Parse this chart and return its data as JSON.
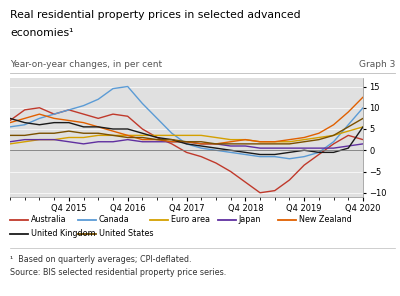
{
  "title_line1": "Real residential property prices in selected advanced",
  "title_line2": "economies¹",
  "subtitle": "Year-on-year changes, in per cent",
  "graph_label": "Graph 3",
  "footnote1": "¹  Based on quarterly averages; CPI-deflated.",
  "footnote2": "Source: BIS selected residential property price series.",
  "ylim": [
    -11,
    17
  ],
  "yticks": [
    -10,
    -5,
    0,
    5,
    10,
    15
  ],
  "background_color": "#e0e0e0",
  "x_labels": [
    "Q4 2015",
    "Q4 2016",
    "Q4 2017",
    "Q4 2018",
    "Q4 2019",
    "Q4 2020"
  ],
  "x_tick_positions": [
    4,
    8,
    12,
    16,
    20,
    24
  ],
  "n_points": 25,
  "series": {
    "Australia": {
      "color": "#c0392b",
      "data_y": [
        7.0,
        9.5,
        10.0,
        8.5,
        9.5,
        8.5,
        7.5,
        8.5,
        8.0,
        5.0,
        3.0,
        1.5,
        -0.5,
        -1.5,
        -3.0,
        -5.0,
        -7.5,
        -10.0,
        -9.5,
        -7.0,
        -3.5,
        -1.0,
        1.5,
        3.5,
        2.5
      ]
    },
    "Canada": {
      "color": "#5b9bd5",
      "data_y": [
        5.5,
        6.0,
        7.5,
        8.5,
        9.5,
        10.5,
        12.0,
        14.5,
        15.0,
        11.0,
        7.5,
        4.0,
        1.5,
        0.5,
        0.0,
        -0.5,
        -1.0,
        -1.5,
        -1.5,
        -2.0,
        -1.5,
        -0.5,
        2.0,
        6.0,
        10.0
      ]
    },
    "Euro area": {
      "color": "#d4a000",
      "data_y": [
        1.5,
        2.0,
        2.5,
        2.5,
        3.0,
        3.0,
        3.5,
        3.5,
        3.5,
        3.5,
        3.5,
        3.5,
        3.5,
        3.5,
        3.0,
        2.5,
        2.5,
        2.0,
        2.0,
        2.0,
        2.5,
        3.0,
        3.5,
        4.5,
        5.5
      ]
    },
    "Japan": {
      "color": "#6030a0",
      "data_y": [
        2.0,
        2.5,
        2.5,
        2.5,
        2.0,
        1.5,
        2.0,
        2.0,
        2.5,
        2.0,
        2.0,
        2.0,
        2.0,
        1.5,
        1.5,
        1.0,
        1.0,
        0.5,
        0.5,
        0.5,
        0.5,
        0.5,
        0.5,
        1.0,
        1.5
      ]
    },
    "New Zealand": {
      "color": "#e06000",
      "data_y": [
        6.5,
        7.5,
        8.5,
        7.5,
        7.0,
        6.5,
        5.5,
        4.5,
        3.5,
        2.5,
        2.5,
        2.0,
        2.0,
        1.5,
        1.5,
        2.0,
        2.5,
        2.0,
        2.0,
        2.5,
        3.0,
        4.0,
        6.0,
        9.0,
        12.5
      ]
    },
    "United Kingdom": {
      "color": "#1a1a1a",
      "data_y": [
        7.5,
        6.5,
        6.0,
        6.5,
        6.5,
        5.5,
        5.5,
        5.0,
        5.0,
        4.0,
        3.0,
        2.5,
        1.5,
        1.0,
        0.5,
        0.0,
        -0.5,
        -1.0,
        -1.0,
        -0.5,
        0.0,
        -0.5,
        -0.5,
        0.5,
        5.5
      ]
    },
    "United States": {
      "color": "#7a5000",
      "data_y": [
        3.5,
        3.5,
        4.0,
        4.0,
        4.5,
        4.0,
        4.0,
        3.5,
        3.0,
        3.0,
        2.5,
        2.5,
        2.0,
        2.0,
        1.5,
        1.5,
        1.5,
        1.5,
        1.5,
        1.5,
        2.0,
        2.5,
        3.5,
        5.5,
        7.5
      ]
    }
  },
  "legend_row1": [
    "Australia",
    "Canada",
    "Euro area",
    "Japan",
    "New Zealand"
  ],
  "legend_row2": [
    "United Kingdom",
    "United States"
  ]
}
